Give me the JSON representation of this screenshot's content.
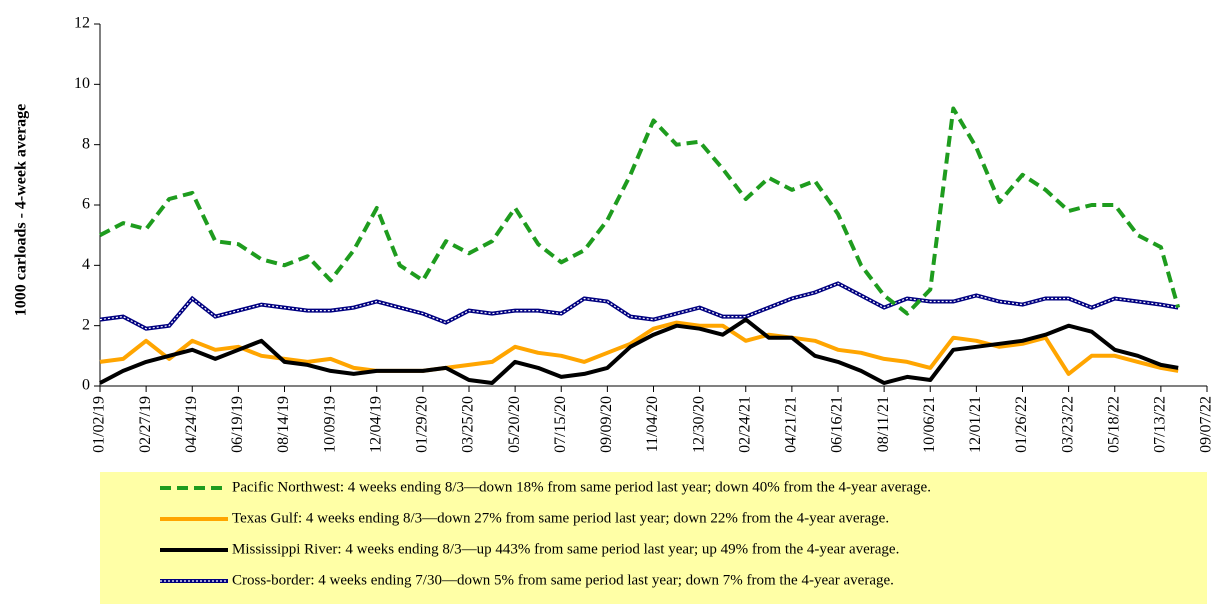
{
  "chart_data": {
    "type": "line",
    "y_label": "1000 carloads  -  4-week  average",
    "x": [
      "01/02/19",
      "01/30/19",
      "02/27/19",
      "03/27/19",
      "04/24/19",
      "05/22/19",
      "06/19/19",
      "07/17/19",
      "08/14/19",
      "09/11/19",
      "10/09/19",
      "11/06/19",
      "12/04/19",
      "01/01/20",
      "01/29/20",
      "02/26/20",
      "03/25/20",
      "04/22/20",
      "05/20/20",
      "06/17/20",
      "07/15/20",
      "08/12/20",
      "09/09/20",
      "10/07/20",
      "11/04/20",
      "12/02/20",
      "12/30/20",
      "01/27/21",
      "02/24/21",
      "03/24/21",
      "04/21/21",
      "05/19/21",
      "06/16/21",
      "07/14/21",
      "08/11/21",
      "09/08/21",
      "10/06/21",
      "11/03/21",
      "12/01/21",
      "12/29/21",
      "01/26/22",
      "02/23/22",
      "03/23/22",
      "04/20/22",
      "05/18/22",
      "06/15/22",
      "07/13/22",
      "08/03/22"
    ],
    "xlim": [
      "01/02/19",
      "09/07/22"
    ],
    "xticks": [
      "01/02/19",
      "02/27/19",
      "04/24/19",
      "06/19/19",
      "08/14/19",
      "10/09/19",
      "12/04/19",
      "01/29/20",
      "03/25/20",
      "05/20/20",
      "07/15/20",
      "09/09/20",
      "11/04/20",
      "12/30/20",
      "02/24/21",
      "04/21/21",
      "06/16/21",
      "08/11/21",
      "10/06/21",
      "12/01/21",
      "01/26/22",
      "03/23/22",
      "05/18/22",
      "07/13/22",
      "09/07/22"
    ],
    "ylim": [
      0,
      12
    ],
    "yticks": [
      0,
      2,
      4,
      6,
      8,
      10,
      12
    ],
    "series": [
      {
        "name": "Pacific Northwest:  4 weeks ending 8/3—down 18% from same period last year; down 40% from the 4-year average.",
        "color": "#1e9c1e",
        "dash": "dashed",
        "values": [
          5.0,
          5.4,
          5.2,
          6.2,
          6.4,
          4.8,
          4.7,
          4.2,
          4.0,
          4.3,
          3.5,
          4.5,
          5.9,
          4.0,
          3.5,
          4.8,
          4.4,
          4.8,
          5.9,
          4.7,
          4.1,
          4.5,
          5.5,
          7.0,
          8.8,
          8.0,
          8.1,
          7.2,
          6.2,
          6.9,
          6.5,
          6.8,
          5.7,
          4.0,
          3.0,
          2.4,
          3.2,
          9.2,
          7.9,
          6.1,
          7.0,
          6.5,
          5.8,
          6.0,
          6.0,
          5.0,
          4.6,
          2.6
        ]
      },
      {
        "name": "Texas Gulf:  4 weeks ending 8/3—down 27% from same period last year; down 22% from the 4-year average.",
        "color": "#ffa500",
        "dash": "solid",
        "values": [
          0.8,
          0.9,
          1.5,
          0.9,
          1.5,
          1.2,
          1.3,
          1.0,
          0.9,
          0.8,
          0.9,
          0.6,
          0.5,
          0.5,
          0.5,
          0.6,
          0.7,
          0.8,
          1.3,
          1.1,
          1.0,
          0.8,
          1.1,
          1.4,
          1.9,
          2.1,
          2.0,
          2.0,
          1.5,
          1.7,
          1.6,
          1.5,
          1.2,
          1.1,
          0.9,
          0.8,
          0.6,
          1.6,
          1.5,
          1.3,
          1.4,
          1.6,
          0.4,
          1.0,
          1.0,
          0.8,
          0.6,
          0.5
        ]
      },
      {
        "name": "Mississippi River:  4 weeks ending 8/3—up 443% from same period last year; up 49% from the 4-year average.",
        "color": "#000000",
        "dash": "solid",
        "values": [
          0.1,
          0.5,
          0.8,
          1.0,
          1.2,
          0.9,
          1.2,
          1.5,
          0.8,
          0.7,
          0.5,
          0.4,
          0.5,
          0.5,
          0.5,
          0.6,
          0.2,
          0.1,
          0.8,
          0.6,
          0.3,
          0.4,
          0.6,
          1.3,
          1.7,
          2.0,
          1.9,
          1.7,
          2.2,
          1.6,
          1.6,
          1.0,
          0.8,
          0.5,
          0.1,
          0.3,
          0.2,
          1.2,
          1.3,
          1.4,
          1.5,
          1.7,
          2.0,
          1.8,
          1.2,
          1.0,
          0.7,
          0.6
        ]
      },
      {
        "name": "Cross-border:  4 weeks ending 7/30—down 5% from same period last year; down 7% from the 4-year average.",
        "color": "#000080",
        "dash": "dotted",
        "values": [
          2.2,
          2.3,
          1.9,
          2.0,
          2.9,
          2.3,
          2.5,
          2.7,
          2.6,
          2.5,
          2.5,
          2.6,
          2.8,
          2.6,
          2.4,
          2.1,
          2.5,
          2.4,
          2.5,
          2.5,
          2.4,
          2.9,
          2.8,
          2.3,
          2.2,
          2.4,
          2.6,
          2.3,
          2.3,
          2.6,
          2.9,
          3.1,
          3.4,
          3.0,
          2.6,
          2.9,
          2.8,
          2.8,
          3.0,
          2.8,
          2.7,
          2.9,
          2.9,
          2.6,
          2.9,
          2.8,
          2.7,
          2.6
        ]
      }
    ],
    "legend_background": "#ffffa6"
  }
}
